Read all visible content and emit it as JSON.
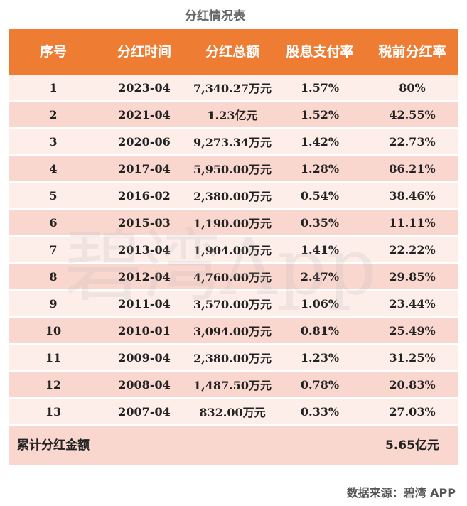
{
  "title": "分红情况表",
  "headers": [
    "序号",
    "分红时间",
    "分红总额",
    "股息支付率",
    "税前分红率"
  ],
  "rows": [
    {
      "no": "1",
      "date": "2023-04",
      "amount": "7,340.27万元",
      "payout": "1.57%",
      "rate": "80%"
    },
    {
      "no": "2",
      "date": "2021-04",
      "amount": "1.23亿元",
      "payout": "1.52%",
      "rate": "42.55%"
    },
    {
      "no": "3",
      "date": "2020-06",
      "amount": "9,273.34万元",
      "payout": "1.42%",
      "rate": "22.73%"
    },
    {
      "no": "4",
      "date": "2017-04",
      "amount": "5,950.00万元",
      "payout": "1.28%",
      "rate": "86.21%"
    },
    {
      "no": "5",
      "date": "2016-02",
      "amount": "2,380.00万元",
      "payout": "0.54%",
      "rate": "38.46%"
    },
    {
      "no": "6",
      "date": "2015-03",
      "amount": "1,190.00万元",
      "payout": "0.35%",
      "rate": "11.11%"
    },
    {
      "no": "7",
      "date": "2013-04",
      "amount": "1,904.00万元",
      "payout": "1.41%",
      "rate": "22.22%"
    },
    {
      "no": "8",
      "date": "2012-04",
      "amount": "4,760.00万元",
      "payout": "2.47%",
      "rate": "29.85%"
    },
    {
      "no": "9",
      "date": "2011-04",
      "amount": "3,570.00万元",
      "payout": "1.06%",
      "rate": "23.44%"
    },
    {
      "no": "10",
      "date": "2010-01",
      "amount": "3,094.00万元",
      "payout": "0.81%",
      "rate": "25.49%"
    },
    {
      "no": "11",
      "date": "2009-04",
      "amount": "2,380.00万元",
      "payout": "1.23%",
      "rate": "31.25%"
    },
    {
      "no": "12",
      "date": "2008-04",
      "amount": "1,487.50万元",
      "payout": "0.78%",
      "rate": "20.83%"
    },
    {
      "no": "13",
      "date": "2007-04",
      "amount": "832.00万元",
      "payout": "0.33%",
      "rate": "27.03%"
    }
  ],
  "total": {
    "label": "累计分红金额",
    "value": "5.65亿元"
  },
  "watermark": "碧湾App",
  "source": "数据来源：碧湾 APP",
  "colors": {
    "header": "#ee7d33",
    "row_light": "#fdeeea",
    "row_dark": "#f9d7cf"
  }
}
